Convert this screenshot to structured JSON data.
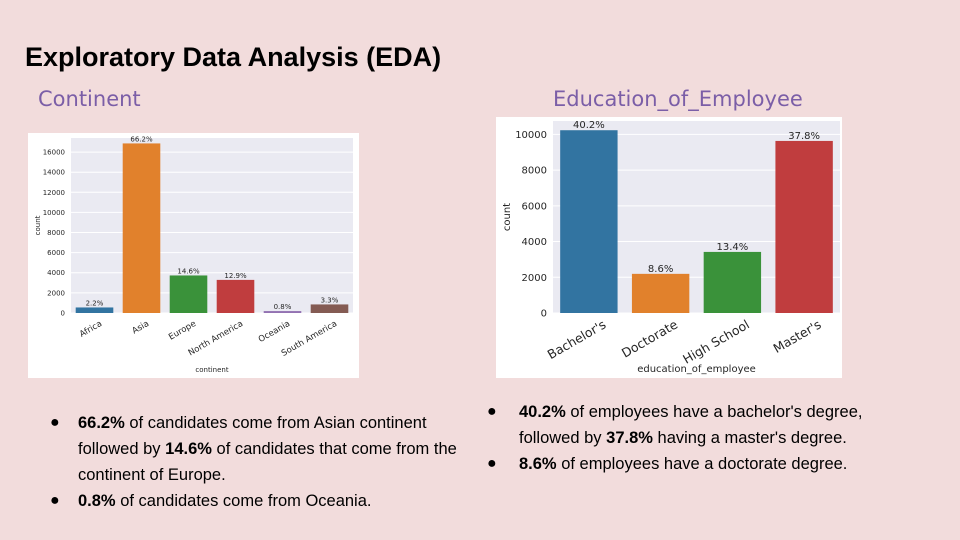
{
  "slide": {
    "title": "Exploratory Data Analysis (EDA)",
    "left_subtitle": "Continent",
    "right_subtitle": "Education_of_Employee"
  },
  "chart_data": [
    {
      "type": "bar",
      "categories": [
        "Africa",
        "Asia",
        "Europe",
        "North America",
        "Oceania",
        "South America"
      ],
      "values": [
        551,
        16861,
        3732,
        3292,
        192,
        852
      ],
      "data_labels": [
        "2.2%",
        "66.2%",
        "14.6%",
        "12.9%",
        "0.8%",
        "3.3%"
      ],
      "colors": [
        "#3274a1",
        "#e1812c",
        "#3a923a",
        "#c03d3e",
        "#9372b2",
        "#845b53"
      ],
      "xlabel": "continent",
      "ylabel": "count",
      "ylim": [
        0,
        17400
      ],
      "yticks": [
        0,
        2000,
        4000,
        6000,
        8000,
        10000,
        12000,
        14000,
        16000
      ],
      "grid": true
    },
    {
      "type": "bar",
      "categories": [
        "Bachelor's",
        "Doctorate",
        "High School",
        "Master's"
      ],
      "values": [
        10234,
        2192,
        3420,
        9634
      ],
      "data_labels": [
        "40.2%",
        "8.6%",
        "13.4%",
        "37.8%"
      ],
      "colors": [
        "#3274a1",
        "#e1812c",
        "#3a923a",
        "#c03d3e"
      ],
      "xlabel": "education_of_employee",
      "ylabel": "count",
      "ylim": [
        0,
        10750
      ],
      "yticks": [
        0,
        2000,
        4000,
        6000,
        8000,
        10000
      ],
      "grid": true
    }
  ],
  "bullets_left": [
    {
      "bold": "66.2%",
      "text": " of candidates come from Asian continent followed by ",
      "bold2": "14.6%",
      "text2": " of candidates that come from the continent of Europe."
    },
    {
      "bold": "0.8%",
      "text": " of candidates come from Oceania.",
      "bold2": "",
      "text2": ""
    }
  ],
  "bullets_right": [
    {
      "bold": "40.2%",
      "text": " of employees have a bachelor's degree, followed by  ",
      "bold2": "37.8%",
      "text2": " having a master's degree."
    },
    {
      "bold": "8.6%",
      "text": " of employees have a doctorate degree.",
      "bold2": "",
      "text2": ""
    }
  ],
  "bullet_symbol": "●"
}
